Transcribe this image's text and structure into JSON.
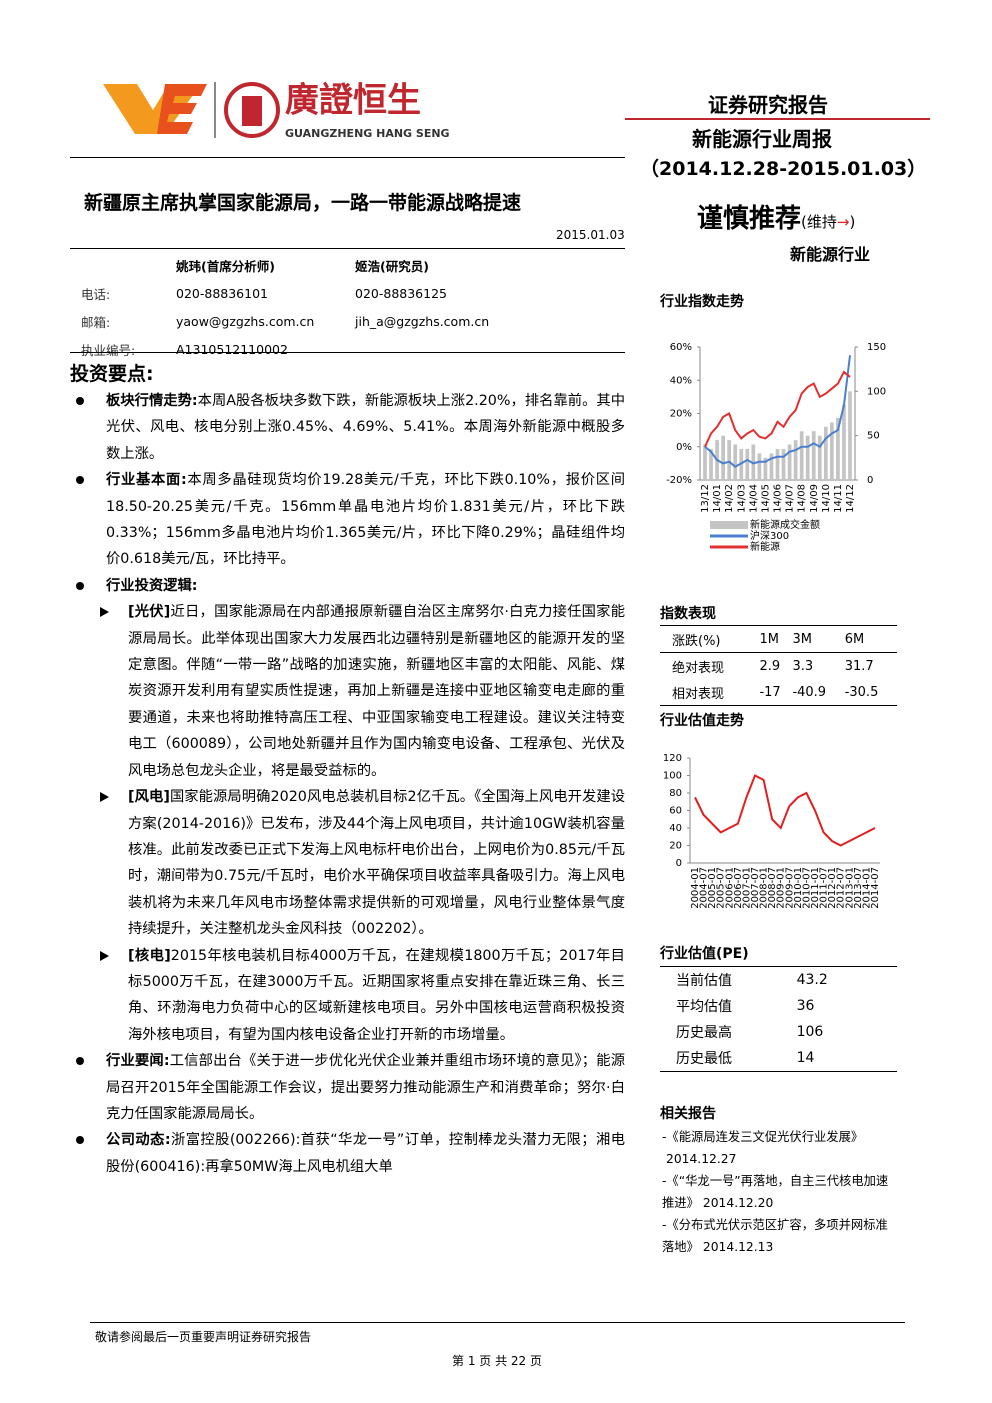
{
  "header": {
    "logo_text": "廣證恒生",
    "logo_sub": "GUANGZHENG HANG SENG",
    "report_type": "证券研究报告",
    "report_name": "新能源行业周报",
    "period": "（2014.12.28-2015.01.03）",
    "title": "新疆原主席执掌国家能源局，一路一带能源战略提速",
    "date": "2015.01.03",
    "rating": "谨慎推荐",
    "rating_note_open": "(维持",
    "rating_arrow": "→",
    "rating_note_close": ")",
    "sector": "新能源行业"
  },
  "analysts": {
    "headers": [
      "姚玮(首席分析师)",
      "姬浩(研究员)"
    ],
    "rows": [
      [
        "电话:",
        "020-88836101",
        "020-88836125"
      ],
      [
        "邮箱:",
        "yaow@gzgzhs.com.cn",
        "jih_a@gzgzhs.com.cn"
      ],
      [
        "执业编号:",
        "A1310512110002"
      ]
    ]
  },
  "highlights": {
    "heading": "投资要点:",
    "items": [
      {
        "label": "板块行情走势:",
        "text": "本周A股各板块多数下跌，新能源板块上涨2.20%，排名靠前。其中光伏、风电、核电分别上涨0.45%、4.69%、5.41%。本周海外新能源中概股多数上涨。"
      },
      {
        "label": "行业基本面:",
        "text": "本周多晶硅现货均价19.28美元/千克，环比下跌0.10%，报价区间18.50-20.25美元/千克。156mm单晶电池片均价1.831美元/片，环比下跌0.33%；156mm多晶电池片均价1.365美元/片，环比下降0.29%；晶硅组件均价0.618美元/瓦，环比持平。"
      },
      {
        "label": "行业投资逻辑:",
        "items": [
          {
            "label": "[光伏]",
            "text": "近日，国家能源局在内部通报原新疆自治区主席努尔·白克力接任国家能源局局长。此举体现出国家大力发展西北边疆特别是新疆地区的能源开发的坚定意图。伴随“一带一路”战略的加速实施，新疆地区丰富的太阳能、风能、煤炭资源开发利用有望实质性提速，再加上新疆是连接中亚地区输变电走廊的重要通道，未来也将助推特高压工程、中亚国家输变电工程建设。建议关注特变电工（600089），公司地处新疆并且作为国内输变电设备、工程承包、光伏及风电场总包龙头企业，将是最受益标的。"
          },
          {
            "label": "[风电]",
            "text": "国家能源局明确2020风电总装机目标2亿千瓦。《全国海上风电开发建设方案(2014-2016)》已发布，涉及44个海上风电项目，共计逾10GW装机容量核准。此前发改委已正式下发海上风电标杆电价出台，上网电价为0.85元/千瓦时，潮间带为0.75元/千瓦时，电价水平确保项目收益率具备吸引力。海上风电装机将为未来几年风电市场整体需求提供新的可观增量，风电行业整体景气度持续提升，关注整机龙头金风科技（002202）。"
          },
          {
            "label": "[核电]",
            "text": "2015年核电装机目标4000万千瓦，在建规模1800万千瓦；2017年目标5000万千瓦，在建3000万千瓦。近期国家将重点安排在靠近珠三角、长三角、环渤海电力负荷中心的区域新建核电项目。另外中国核电运营商积极投资海外核电项目，有望为国内核电设备企业打开新的市场增量。"
          }
        ]
      },
      {
        "label": "行业要闻:",
        "text": "工信部出台《关于进一步优化光伏企业兼并重组市场环境的意见》；能源局召开2015年全国能源工作会议，提出要努力推动能源生产和消费革命；努尔·白克力任国家能源局局长。"
      },
      {
        "label": "公司动态:",
        "text": "浙富控股(002266):首获“华龙一号”订单，控制棒龙头潜力无限；湘电股份(600416):再拿50MW海上风电机组大单"
      }
    ]
  },
  "chart_data": [
    {
      "type": "bar_line",
      "title": "行业指数走势",
      "categories": [
        "13/12",
        null,
        "14/01",
        null,
        "14/02",
        null,
        "14/03",
        null,
        "14/04",
        null,
        "14/05",
        null,
        "14/06",
        null,
        "14/07",
        null,
        "14/08",
        null,
        "14/09",
        null,
        "14/10",
        null,
        "14/11",
        null,
        "14/12"
      ],
      "series": [
        {
          "name": "新能源成交金额",
          "type": "bar",
          "axis": "y2",
          "color": "#c4c4c4",
          "values": [
            40,
            35,
            45,
            50,
            45,
            40,
            35,
            35,
            40,
            30,
            25,
            30,
            35,
            35,
            40,
            45,
            55,
            50,
            55,
            50,
            60,
            65,
            70,
            85,
            100
          ]
        },
        {
          "name": "沪深300",
          "type": "line",
          "color": "#4a7fd0",
          "values": [
            0,
            -3,
            -8,
            -10,
            -9,
            -12,
            -10,
            -8,
            -10,
            -9,
            -9,
            -7,
            -6,
            -6,
            -3,
            -2,
            0,
            0,
            2,
            0,
            5,
            8,
            10,
            25,
            55
          ]
        },
        {
          "name": "新能源",
          "type": "line",
          "color": "#e03030",
          "values": [
            0,
            8,
            12,
            18,
            20,
            10,
            5,
            8,
            10,
            6,
            5,
            8,
            15,
            12,
            18,
            22,
            32,
            36,
            38,
            30,
            32,
            35,
            38,
            45,
            42
          ]
        }
      ],
      "ylim": [
        -20,
        60
      ],
      "yticks": [
        {
          "value": -20,
          "label": "-20%"
        },
        {
          "value": 0,
          "label": "0%"
        },
        {
          "value": 20,
          "label": "20%"
        },
        {
          "value": 40,
          "label": "40%"
        },
        {
          "value": 60,
          "label": "60%"
        }
      ],
      "y2lim": [
        0,
        150
      ],
      "y2ticks": [
        0,
        50,
        100,
        150
      ]
    },
    {
      "type": "line",
      "title": "行业估值走势",
      "categories": [
        "2004-01",
        "2004-07",
        "2005-01",
        "2005-07",
        "2006-01",
        "2006-07",
        "2007-01",
        "2007-07",
        "2008-01",
        "2008-07",
        "2009-01",
        "2009-07",
        "2010-01",
        "2010-07",
        "2011-01",
        "2011-07",
        "2012-01",
        "2012-07",
        "2013-01",
        "2013-07",
        "2014-01",
        "2014-07"
      ],
      "series": [
        {
          "type": "line",
          "color": "#e02020",
          "values": [
            75,
            55,
            45,
            35,
            40,
            45,
            75,
            100,
            95,
            50,
            40,
            65,
            75,
            80,
            60,
            35,
            25,
            20,
            25,
            30,
            35,
            40
          ]
        }
      ],
      "ylim": [
        0,
        120
      ],
      "yticks": [
        0,
        20,
        40,
        60,
        80,
        100,
        120
      ]
    }
  ],
  "index_table": {
    "title": "指数表现",
    "header": [
      "涨跌(%)",
      "1M",
      "3M",
      "6M"
    ],
    "rows": [
      [
        "绝对表现",
        2.9,
        3.3,
        31.7
      ],
      [
        "相对表现",
        -17,
        -40.9,
        -30.5
      ]
    ]
  },
  "pe_table": {
    "title": "行业估值(PE)",
    "rows": [
      [
        "当前估值",
        43.2
      ],
      [
        "平均估值",
        36
      ],
      [
        "历史最高",
        106
      ],
      [
        "历史最低",
        14
      ]
    ]
  },
  "related": {
    "title": "相关报告",
    "items": [
      {
        "title": "-《能源局连发三文促光伏行业发展》",
        "date": "2014.12.27"
      },
      {
        "title": "-《“华龙一号”再落地，自主三代核电加速推进》",
        "date": "2014.12.20"
      },
      {
        "title": "-《分布式光伏示范区扩容，多项并网标准落地》",
        "date": "2014.12.13"
      }
    ]
  },
  "footer": {
    "disclaimer": "敬请参阅最后一页重要声明证券研究报告",
    "page": "第 1 页 共 22 页"
  }
}
